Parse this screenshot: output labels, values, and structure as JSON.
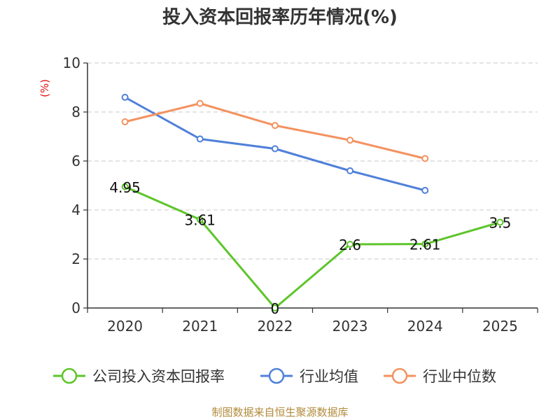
{
  "chart_data": {
    "type": "line",
    "title": "投入资本回报率历年情况(%)",
    "unit_label": "(%)",
    "categories": [
      "2020",
      "2021",
      "2022",
      "2023",
      "2024",
      "2025"
    ],
    "ylim": [
      0,
      10
    ],
    "yticks": [
      "0",
      "2",
      "4",
      "6",
      "8",
      "10"
    ],
    "grid": true,
    "legend_position": "bottom",
    "series": [
      {
        "name": "公司投入资本回报率",
        "color": "#5ec52b",
        "values": [
          4.95,
          3.61,
          0,
          2.6,
          2.61,
          3.5
        ],
        "labels": [
          "4.95",
          "3.61",
          "0",
          "2.6",
          "2.61",
          "3.5"
        ]
      },
      {
        "name": "行业均值",
        "color": "#4f80d9",
        "values": [
          8.6,
          6.9,
          6.5,
          5.6,
          4.8,
          null
        ]
      },
      {
        "name": "行业中位数",
        "color": "#f39260",
        "values": [
          7.6,
          8.35,
          7.45,
          6.85,
          6.1,
          null
        ]
      }
    ],
    "source": "制图数据来自恒生聚源数据库"
  }
}
